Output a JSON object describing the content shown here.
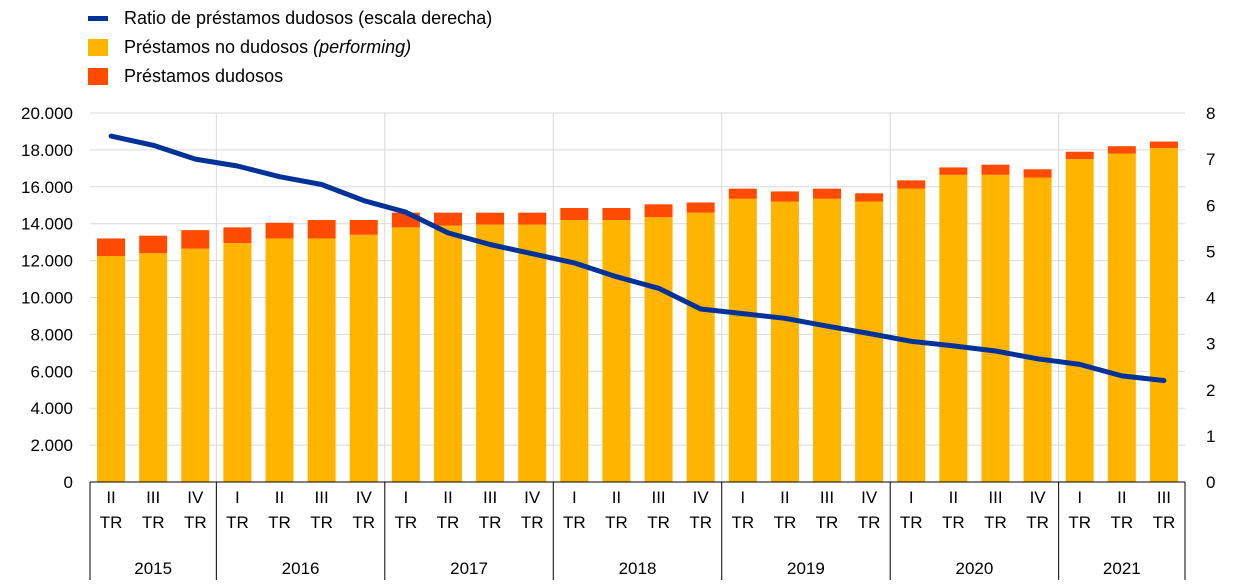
{
  "chart_data": {
    "type": "bar",
    "stacked": true,
    "legend_position": "top-left",
    "grid": true,
    "quarters": [
      "II",
      "III",
      "IV",
      "I",
      "II",
      "III",
      "IV",
      "I",
      "II",
      "III",
      "IV",
      "I",
      "II",
      "III",
      "IV",
      "I",
      "II",
      "III",
      "IV",
      "I",
      "II",
      "III",
      "IV",
      "I",
      "II",
      "III"
    ],
    "quarter_suffix": "TR",
    "years": [
      {
        "label": "2015",
        "count": 3
      },
      {
        "label": "2016",
        "count": 4
      },
      {
        "label": "2017",
        "count": 4
      },
      {
        "label": "2018",
        "count": 4
      },
      {
        "label": "2019",
        "count": 4
      },
      {
        "label": "2020",
        "count": 4
      },
      {
        "label": "2021",
        "count": 3
      }
    ],
    "series": [
      {
        "name": "Préstamos no dudosos",
        "name_italic": "(performing)",
        "kind": "bar",
        "color": "#FFB400",
        "values": [
          12250,
          12400,
          12650,
          12950,
          13200,
          13200,
          13400,
          13800,
          13900,
          13950,
          13950,
          14200,
          14200,
          14350,
          14600,
          15350,
          15200,
          15350,
          15200,
          15900,
          16650,
          16650,
          16500,
          17500,
          17800,
          18100
        ]
      },
      {
        "name": "Préstamos dudosos",
        "kind": "bar",
        "color": "#FF4B00",
        "values": [
          950,
          950,
          1000,
          850,
          850,
          1000,
          800,
          800,
          700,
          650,
          650,
          650,
          650,
          700,
          550,
          550,
          550,
          550,
          450,
          450,
          400,
          550,
          450,
          400,
          400,
          350
        ]
      },
      {
        "name": "Ratio de préstamos dudosos (escala derecha)",
        "kind": "line",
        "axis": "right",
        "color": "#003299",
        "values": [
          7.5,
          7.3,
          7.0,
          6.85,
          6.62,
          6.45,
          6.1,
          5.85,
          5.4,
          5.15,
          4.95,
          4.75,
          4.45,
          4.2,
          3.75,
          3.65,
          3.55,
          3.38,
          3.22,
          3.05,
          2.95,
          2.84,
          2.67,
          2.55,
          2.3,
          2.2
        ]
      }
    ],
    "y_left": {
      "min": 0,
      "max": 20000,
      "ticks": [
        "0",
        "2.000",
        "4.000",
        "6.000",
        "8.000",
        "10.000",
        "12.000",
        "14.000",
        "16.000",
        "18.000",
        "20.000"
      ]
    },
    "y_right": {
      "min": 0,
      "max": 8,
      "ticks": [
        "0",
        "1",
        "2",
        "3",
        "4",
        "5",
        "6",
        "7",
        "8"
      ]
    }
  }
}
